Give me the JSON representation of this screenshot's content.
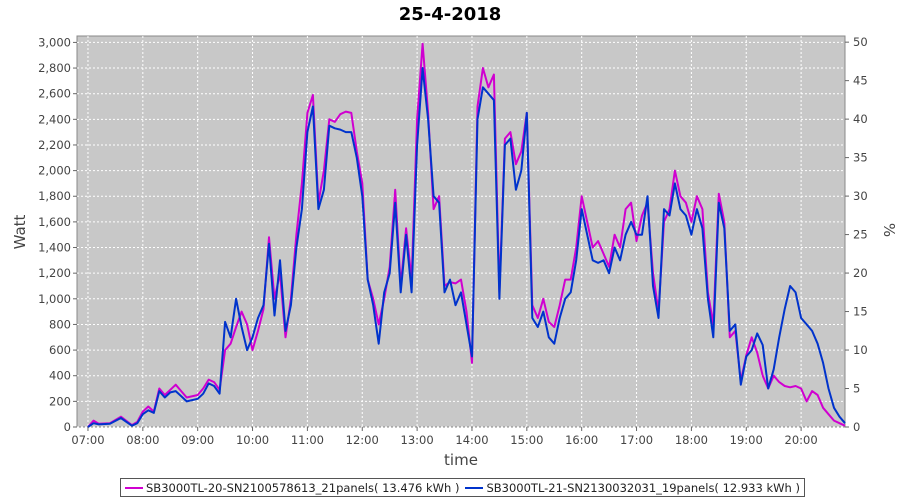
{
  "chart_data": {
    "type": "line",
    "title": "25-4-2018",
    "xlabel": "time",
    "ylabel": "Watt",
    "y2label": "%",
    "xlim": [
      "06:48",
      "20:48"
    ],
    "ylim": [
      0,
      3050
    ],
    "y2lim": [
      0,
      50.8
    ],
    "x_ticks": [
      "07:00",
      "08:00",
      "09:00",
      "10:00",
      "11:00",
      "12:00",
      "13:00",
      "14:00",
      "15:00",
      "16:00",
      "17:00",
      "18:00",
      "19:00",
      "20:00"
    ],
    "y_ticks": [
      "0",
      "200",
      "400",
      "600",
      "800",
      "1,000",
      "1,200",
      "1,400",
      "1,600",
      "1,800",
      "2,000",
      "2,200",
      "2,400",
      "2,600",
      "2,800",
      "3,000"
    ],
    "y2_ticks": [
      "0",
      "5",
      "10",
      "15",
      "20",
      "25",
      "30",
      "35",
      "40",
      "45",
      "50"
    ],
    "grid": true,
    "legend_position": "bottom",
    "plot_background": "#c8c8c8",
    "series": [
      {
        "name": "SB3000TL-20-SN2100578613_21panels( 13.476 kWh )",
        "color": "#d000d0",
        "points": [
          [
            "07:00",
            0
          ],
          [
            "07:06",
            50
          ],
          [
            "07:12",
            25
          ],
          [
            "07:24",
            30
          ],
          [
            "07:36",
            80
          ],
          [
            "07:48",
            15
          ],
          [
            "07:54",
            40
          ],
          [
            "08:00",
            120
          ],
          [
            "08:06",
            160
          ],
          [
            "08:12",
            120
          ],
          [
            "08:18",
            300
          ],
          [
            "08:24",
            250
          ],
          [
            "08:30",
            290
          ],
          [
            "08:36",
            330
          ],
          [
            "08:42",
            280
          ],
          [
            "08:48",
            230
          ],
          [
            "09:00",
            250
          ],
          [
            "09:06",
            300
          ],
          [
            "09:12",
            370
          ],
          [
            "09:18",
            350
          ],
          [
            "09:24",
            290
          ],
          [
            "09:30",
            600
          ],
          [
            "09:36",
            650
          ],
          [
            "09:42",
            780
          ],
          [
            "09:48",
            900
          ],
          [
            "09:54",
            800
          ],
          [
            "10:00",
            600
          ],
          [
            "10:06",
            750
          ],
          [
            "10:12",
            920
          ],
          [
            "10:18",
            1480
          ],
          [
            "10:24",
            1000
          ],
          [
            "10:30",
            1200
          ],
          [
            "10:36",
            700
          ],
          [
            "10:42",
            1000
          ],
          [
            "10:48",
            1500
          ],
          [
            "10:54",
            1900
          ],
          [
            "11:00",
            2450
          ],
          [
            "11:06",
            2590
          ],
          [
            "11:12",
            1750
          ],
          [
            "11:18",
            2000
          ],
          [
            "11:24",
            2400
          ],
          [
            "11:30",
            2380
          ],
          [
            "11:36",
            2440
          ],
          [
            "11:42",
            2460
          ],
          [
            "11:48",
            2450
          ],
          [
            "11:54",
            2150
          ],
          [
            "12:00",
            1900
          ],
          [
            "12:06",
            1150
          ],
          [
            "12:12",
            1000
          ],
          [
            "12:18",
            800
          ],
          [
            "12:24",
            1000
          ],
          [
            "12:30",
            1250
          ],
          [
            "12:36",
            1850
          ],
          [
            "12:42",
            1100
          ],
          [
            "12:48",
            1550
          ],
          [
            "12:54",
            1150
          ],
          [
            "13:00",
            2400
          ],
          [
            "13:06",
            2990
          ],
          [
            "13:12",
            2450
          ],
          [
            "13:18",
            1700
          ],
          [
            "13:24",
            1800
          ],
          [
            "13:30",
            1100
          ],
          [
            "13:36",
            1130
          ],
          [
            "13:42",
            1120
          ],
          [
            "13:48",
            1150
          ],
          [
            "13:54",
            900
          ],
          [
            "14:00",
            500
          ],
          [
            "14:06",
            2500
          ],
          [
            "14:12",
            2800
          ],
          [
            "14:18",
            2650
          ],
          [
            "14:24",
            2750
          ],
          [
            "14:30",
            1050
          ],
          [
            "14:36",
            2250
          ],
          [
            "14:42",
            2300
          ],
          [
            "14:48",
            2050
          ],
          [
            "14:54",
            2150
          ],
          [
            "15:00",
            2450
          ],
          [
            "15:06",
            950
          ],
          [
            "15:12",
            850
          ],
          [
            "15:18",
            1000
          ],
          [
            "15:24",
            820
          ],
          [
            "15:30",
            780
          ],
          [
            "15:36",
            950
          ],
          [
            "15:42",
            1150
          ],
          [
            "15:48",
            1150
          ],
          [
            "15:54",
            1400
          ],
          [
            "16:00",
            1800
          ],
          [
            "16:06",
            1600
          ],
          [
            "16:12",
            1400
          ],
          [
            "16:18",
            1450
          ],
          [
            "16:24",
            1350
          ],
          [
            "16:30",
            1250
          ],
          [
            "16:36",
            1500
          ],
          [
            "16:42",
            1400
          ],
          [
            "16:48",
            1700
          ],
          [
            "16:54",
            1750
          ],
          [
            "17:00",
            1450
          ],
          [
            "17:06",
            1650
          ],
          [
            "17:12",
            1750
          ],
          [
            "17:18",
            1200
          ],
          [
            "17:24",
            900
          ],
          [
            "17:30",
            1600
          ],
          [
            "17:36",
            1700
          ],
          [
            "17:42",
            2000
          ],
          [
            "17:48",
            1800
          ],
          [
            "17:54",
            1750
          ],
          [
            "18:00",
            1600
          ],
          [
            "18:06",
            1800
          ],
          [
            "18:12",
            1700
          ],
          [
            "18:18",
            1050
          ],
          [
            "18:24",
            800
          ],
          [
            "18:30",
            1820
          ],
          [
            "18:36",
            1600
          ],
          [
            "18:42",
            700
          ],
          [
            "18:48",
            750
          ],
          [
            "18:54",
            360
          ],
          [
            "19:00",
            560
          ],
          [
            "19:06",
            700
          ],
          [
            "19:12",
            580
          ],
          [
            "19:18",
            400
          ],
          [
            "19:24",
            300
          ],
          [
            "19:30",
            400
          ],
          [
            "19:36",
            350
          ],
          [
            "19:42",
            320
          ],
          [
            "19:48",
            310
          ],
          [
            "19:54",
            320
          ],
          [
            "20:00",
            300
          ],
          [
            "20:06",
            200
          ],
          [
            "20:12",
            280
          ],
          [
            "20:18",
            250
          ],
          [
            "20:24",
            150
          ],
          [
            "20:30",
            100
          ],
          [
            "20:36",
            50
          ],
          [
            "20:42",
            30
          ],
          [
            "20:48",
            10
          ],
          [
            "20:54",
            80
          ],
          [
            "21:00",
            60
          ],
          [
            "21:06",
            10
          ],
          [
            "21:12",
            0
          ]
        ]
      },
      {
        "name": "SB3000TL-21-SN2130032031_19panels( 12.933 kWh )",
        "color": "#0033cc",
        "points": [
          [
            "07:00",
            0
          ],
          [
            "07:06",
            30
          ],
          [
            "07:12",
            20
          ],
          [
            "07:24",
            25
          ],
          [
            "07:36",
            70
          ],
          [
            "07:48",
            10
          ],
          [
            "07:54",
            30
          ],
          [
            "08:00",
            100
          ],
          [
            "08:06",
            130
          ],
          [
            "08:12",
            110
          ],
          [
            "08:18",
            280
          ],
          [
            "08:24",
            230
          ],
          [
            "08:30",
            270
          ],
          [
            "08:36",
            280
          ],
          [
            "08:42",
            240
          ],
          [
            "08:48",
            200
          ],
          [
            "09:00",
            220
          ],
          [
            "09:06",
            260
          ],
          [
            "09:12",
            340
          ],
          [
            "09:18",
            320
          ],
          [
            "09:24",
            260
          ],
          [
            "09:30",
            820
          ],
          [
            "09:36",
            700
          ],
          [
            "09:42",
            1000
          ],
          [
            "09:48",
            780
          ],
          [
            "09:54",
            600
          ],
          [
            "10:00",
            700
          ],
          [
            "10:06",
            850
          ],
          [
            "10:12",
            950
          ],
          [
            "10:18",
            1430
          ],
          [
            "10:24",
            870
          ],
          [
            "10:30",
            1300
          ],
          [
            "10:36",
            750
          ],
          [
            "10:42",
            950
          ],
          [
            "10:48",
            1400
          ],
          [
            "10:54",
            1700
          ],
          [
            "11:00",
            2300
          ],
          [
            "11:06",
            2500
          ],
          [
            "11:12",
            1700
          ],
          [
            "11:18",
            1850
          ],
          [
            "11:24",
            2350
          ],
          [
            "11:30",
            2330
          ],
          [
            "11:36",
            2320
          ],
          [
            "11:42",
            2300
          ],
          [
            "11:48",
            2300
          ],
          [
            "11:54",
            2100
          ],
          [
            "12:00",
            1800
          ],
          [
            "12:06",
            1150
          ],
          [
            "12:12",
            950
          ],
          [
            "12:18",
            650
          ],
          [
            "12:24",
            1050
          ],
          [
            "12:30",
            1200
          ],
          [
            "12:36",
            1750
          ],
          [
            "12:42",
            1050
          ],
          [
            "12:48",
            1500
          ],
          [
            "12:54",
            1050
          ],
          [
            "13:00",
            2200
          ],
          [
            "13:06",
            2800
          ],
          [
            "13:12",
            2400
          ],
          [
            "13:18",
            1800
          ],
          [
            "13:24",
            1750
          ],
          [
            "13:30",
            1050
          ],
          [
            "13:36",
            1150
          ],
          [
            "13:42",
            950
          ],
          [
            "13:48",
            1050
          ],
          [
            "13:54",
            800
          ],
          [
            "14:00",
            550
          ],
          [
            "14:06",
            2400
          ],
          [
            "14:12",
            2650
          ],
          [
            "14:18",
            2600
          ],
          [
            "14:24",
            2550
          ],
          [
            "14:30",
            1000
          ],
          [
            "14:36",
            2200
          ],
          [
            "14:42",
            2250
          ],
          [
            "14:48",
            1850
          ],
          [
            "14:54",
            2000
          ],
          [
            "15:00",
            2450
          ],
          [
            "15:06",
            850
          ],
          [
            "15:12",
            780
          ],
          [
            "15:18",
            900
          ],
          [
            "15:24",
            700
          ],
          [
            "15:30",
            650
          ],
          [
            "15:36",
            850
          ],
          [
            "15:42",
            1000
          ],
          [
            "15:48",
            1050
          ],
          [
            "15:54",
            1300
          ],
          [
            "16:00",
            1700
          ],
          [
            "16:06",
            1500
          ],
          [
            "16:12",
            1300
          ],
          [
            "16:18",
            1280
          ],
          [
            "16:24",
            1300
          ],
          [
            "16:30",
            1200
          ],
          [
            "16:36",
            1400
          ],
          [
            "16:42",
            1300
          ],
          [
            "16:48",
            1500
          ],
          [
            "16:54",
            1600
          ],
          [
            "17:00",
            1500
          ],
          [
            "17:06",
            1500
          ],
          [
            "17:12",
            1800
          ],
          [
            "17:18",
            1100
          ],
          [
            "17:24",
            850
          ],
          [
            "17:30",
            1700
          ],
          [
            "17:36",
            1650
          ],
          [
            "17:42",
            1900
          ],
          [
            "17:48",
            1700
          ],
          [
            "17:54",
            1650
          ],
          [
            "18:00",
            1500
          ],
          [
            "18:06",
            1700
          ],
          [
            "18:12",
            1550
          ],
          [
            "18:18",
            1000
          ],
          [
            "18:24",
            700
          ],
          [
            "18:30",
            1750
          ],
          [
            "18:36",
            1550
          ],
          [
            "18:42",
            750
          ],
          [
            "18:48",
            800
          ],
          [
            "18:54",
            330
          ],
          [
            "19:00",
            550
          ],
          [
            "19:06",
            600
          ],
          [
            "19:12",
            730
          ],
          [
            "19:18",
            640
          ],
          [
            "19:24",
            300
          ],
          [
            "19:30",
            450
          ],
          [
            "19:36",
            700
          ],
          [
            "19:42",
            920
          ],
          [
            "19:48",
            1100
          ],
          [
            "19:54",
            1050
          ],
          [
            "20:00",
            850
          ],
          [
            "20:06",
            800
          ],
          [
            "20:12",
            750
          ],
          [
            "20:18",
            650
          ],
          [
            "20:24",
            500
          ],
          [
            "20:30",
            300
          ],
          [
            "20:36",
            150
          ],
          [
            "20:42",
            80
          ],
          [
            "20:48",
            30
          ],
          [
            "20:54",
            60
          ],
          [
            "21:00",
            40
          ],
          [
            "21:06",
            5
          ],
          [
            "21:12",
            0
          ]
        ]
      }
    ]
  }
}
